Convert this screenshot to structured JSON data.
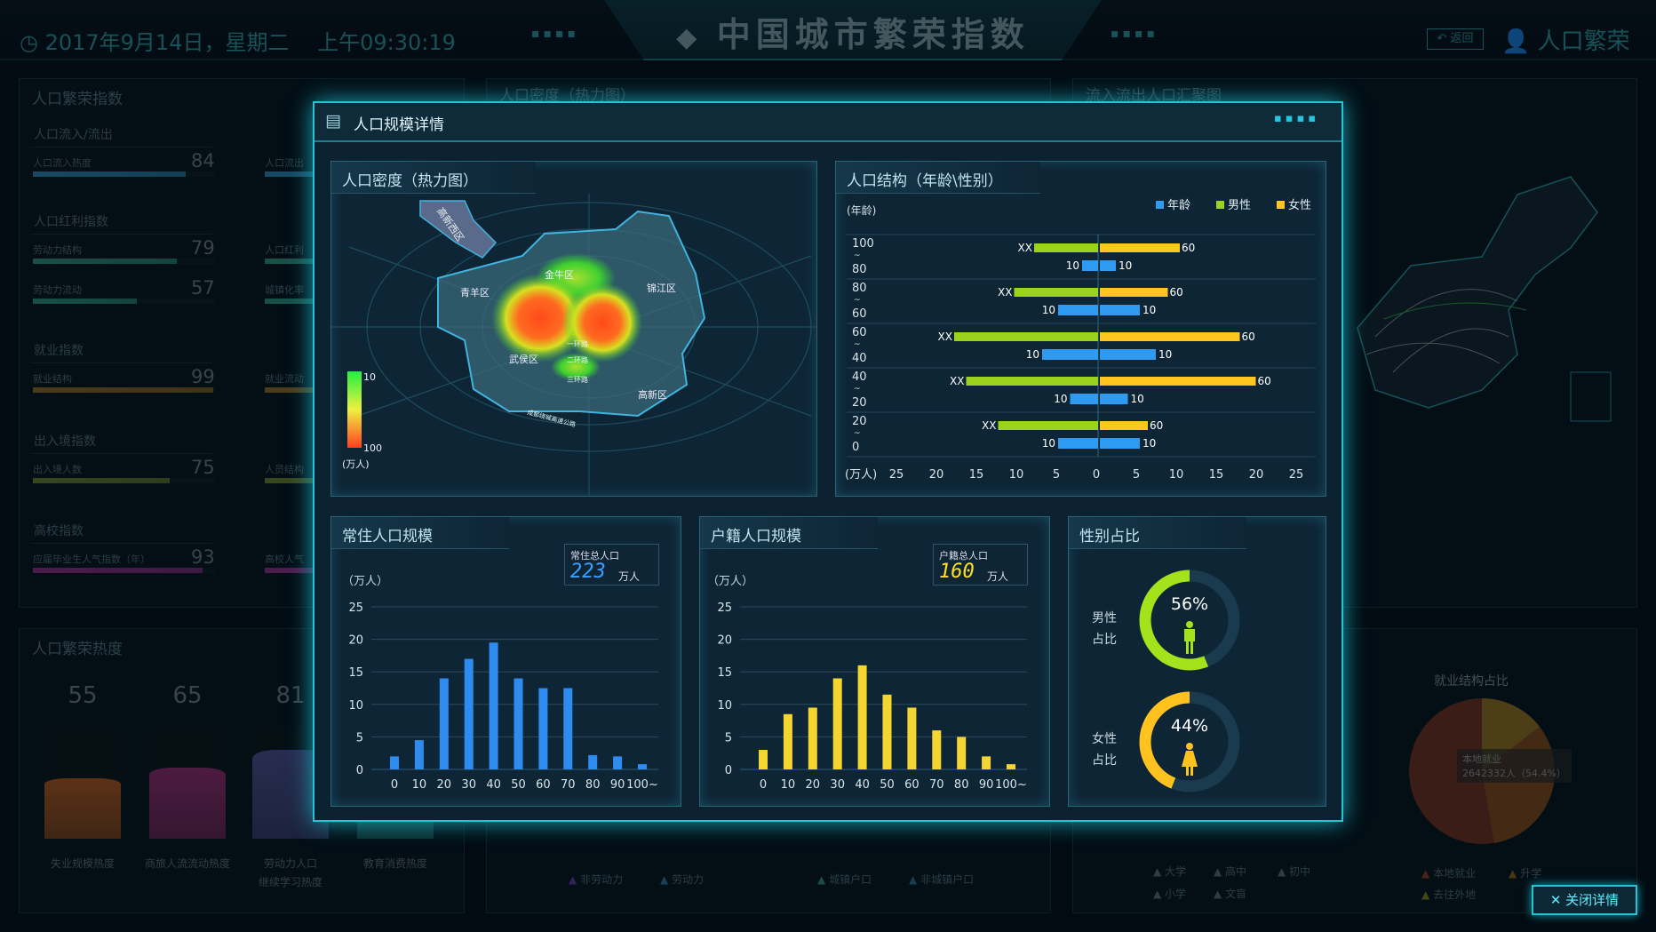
{
  "header": {
    "date": "2017年9月14日，星期二",
    "time": "上午09:30:19",
    "title": "中国城市繁荣指数",
    "back_label": "返回",
    "user_label": "人口繁荣",
    "dots": "▪▪▪▪"
  },
  "left_panel": {
    "title": "人口繁荣指数",
    "sections": [
      {
        "title": "人口流入/流出",
        "items": [
          {
            "label": "人口流入热度",
            "value": "84",
            "pct": 84,
            "color": "#2a7fa8"
          }
        ],
        "side": [
          "人口流出"
        ]
      },
      {
        "title": "人口红利指数",
        "items": [
          {
            "label": "劳动力结构",
            "value": "79",
            "pct": 79,
            "color": "#2c8a78"
          },
          {
            "label": "劳动力流动",
            "value": "57",
            "pct": 57,
            "color": "#2c8a78"
          }
        ],
        "side": [
          "人口红利",
          "城镇化率"
        ]
      },
      {
        "title": "就业指数",
        "items": [
          {
            "label": "就业结构",
            "value": "99",
            "pct": 99,
            "color": "#8a6428"
          }
        ],
        "side": [
          "就业流动"
        ]
      },
      {
        "title": "出入境指数",
        "items": [
          {
            "label": "出入境人数",
            "value": "75",
            "pct": 75,
            "color": "#667a2a"
          }
        ],
        "side": [
          "人员结构"
        ]
      },
      {
        "title": "高校指数",
        "items": [
          {
            "label": "应届毕业生人气指数（年）",
            "value": "93",
            "pct": 93,
            "color": "#8a2c80"
          }
        ],
        "side": [
          "高校人气"
        ]
      }
    ]
  },
  "heat_panel": {
    "title": "人口繁荣热度",
    "items": [
      {
        "value": "55",
        "label": "失业规模热度",
        "color": "#a8541e"
      },
      {
        "value": "65",
        "label": "商旅人流流动热度",
        "color": "#8c2a6a"
      },
      {
        "value": "81",
        "label": "劳动力人口",
        "label2": "继续学习热度",
        "color": "#4a4a88"
      },
      {
        "value": "",
        "label": "教育消费热度",
        "color": "#1f6a6a"
      }
    ]
  },
  "mid_bg": {
    "title": "人口密度（热力图）",
    "legend": [
      "非劳动力",
      "劳动力",
      "城镇户口",
      "非城镇户口"
    ]
  },
  "right_bg": {
    "title": "流入流出人口汇聚图",
    "pie_title": "就业结构占比",
    "tooltip_name": "本地就业",
    "tooltip_value": "2642332人（54.4%）",
    "edu_legend": [
      "大学",
      "高中",
      "初中",
      "小学",
      "文盲"
    ],
    "job_legend": [
      "本地就业",
      "升学",
      "去往外地"
    ]
  },
  "modal": {
    "title": "人口规模详情",
    "close_label": "关闭详情",
    "heatmap": {
      "title": "人口密度（热力图）",
      "districts": [
        "高新西区",
        "金牛区",
        "青羊区",
        "锦江区",
        "武侯区",
        "高新区"
      ],
      "roads": [
        "一环路",
        "二环路",
        "三环路",
        "成都绕城高速公路"
      ],
      "legend_min": "10",
      "legend_max": "100",
      "legend_unit": "(万人)"
    },
    "pyramid": {
      "title": "人口结构（年龄\\性别）",
      "y_unit": "(年龄)",
      "x_unit": "(万人)",
      "legend": [
        {
          "name": "年龄",
          "color": "#2f9bf0"
        },
        {
          "name": "男性",
          "color": "#9ad21e"
        },
        {
          "name": "女性",
          "color": "#ffc520"
        }
      ]
    },
    "resident": {
      "title": "常住人口规模",
      "unit": "（万人）",
      "total_label": "常住总人口",
      "total_value": "223",
      "total_unit": "万人"
    },
    "hukou": {
      "title": "户籍人口规模",
      "unit": "（万人）",
      "total_label": "户籍总人口",
      "total_value": "160",
      "total_unit": "万人"
    },
    "gender": {
      "title": "性别占比",
      "male_label": "男性",
      "female_label": "女性",
      "ratio_label": "占比",
      "male_pct": "56%",
      "female_pct": "44%",
      "male_color": "#a4e21c",
      "female_color": "#ffc21e"
    }
  },
  "chart_data": [
    {
      "type": "bar",
      "orientation": "horizontal-pyramid",
      "title": "人口结构（年龄\\性别）",
      "ylabel": "(年龄)",
      "xlabel": "(万人)",
      "xlim": [
        -25,
        25
      ],
      "x_ticks": [
        "25",
        "20",
        "15",
        "10",
        "5",
        "0",
        "5",
        "10",
        "15",
        "20",
        "25"
      ],
      "categories": [
        [
          "100",
          "80"
        ],
        [
          "80",
          "60"
        ],
        [
          "60",
          "40"
        ],
        [
          "40",
          "20"
        ],
        [
          "20",
          "0"
        ]
      ],
      "series": [
        {
          "name": "男性",
          "side": "left",
          "values": [
            8,
            10.5,
            18,
            16.5,
            12.5
          ],
          "labels": [
            "XX",
            "XX",
            "XX",
            "XX",
            "XX"
          ]
        },
        {
          "name": "女性",
          "side": "right",
          "values": [
            10,
            8.5,
            17.5,
            19.5,
            6
          ],
          "labels": [
            "60",
            "60",
            "60",
            "60",
            "60"
          ]
        },
        {
          "name": "年龄",
          "side": "left",
          "values": [
            2,
            5,
            7,
            3.5,
            5
          ],
          "labels": [
            "10",
            "10",
            "10",
            "10",
            "10"
          ]
        },
        {
          "name": "年龄",
          "side": "right",
          "values": [
            2,
            5,
            7,
            3.5,
            5
          ],
          "labels": [
            "10",
            "10",
            "10",
            "10",
            "10"
          ]
        }
      ],
      "legend": "top-right",
      "grid": true
    },
    {
      "type": "bar",
      "title": "常住人口规模",
      "ylabel": "（万人）",
      "categories": [
        "0",
        "10",
        "20",
        "30",
        "40",
        "50",
        "60",
        "70",
        "80",
        "90",
        "100~"
      ],
      "values": [
        2,
        4.5,
        14,
        17,
        19.5,
        14,
        12.5,
        12.5,
        2.2,
        2,
        0.8
      ],
      "ylim": [
        0,
        25
      ],
      "y_ticks": [
        "0",
        "5",
        "10",
        "15",
        "20",
        "25"
      ],
      "color": "#2e8cf0",
      "grid": true
    },
    {
      "type": "bar",
      "title": "户籍人口规模",
      "ylabel": "（万人）",
      "categories": [
        "0",
        "10",
        "20",
        "30",
        "40",
        "50",
        "60",
        "70",
        "80",
        "90",
        "100~"
      ],
      "values": [
        3,
        8.5,
        9.5,
        14,
        16,
        11.5,
        9.5,
        6,
        5,
        2,
        0.8
      ],
      "ylim": [
        0,
        25
      ],
      "y_ticks": [
        "0",
        "5",
        "10",
        "15",
        "20",
        "25"
      ],
      "color": "#f5d631",
      "grid": true
    },
    {
      "type": "pie",
      "title": "性别占比",
      "categories": [
        "男性",
        "女性"
      ],
      "values": [
        56,
        44
      ]
    }
  ]
}
